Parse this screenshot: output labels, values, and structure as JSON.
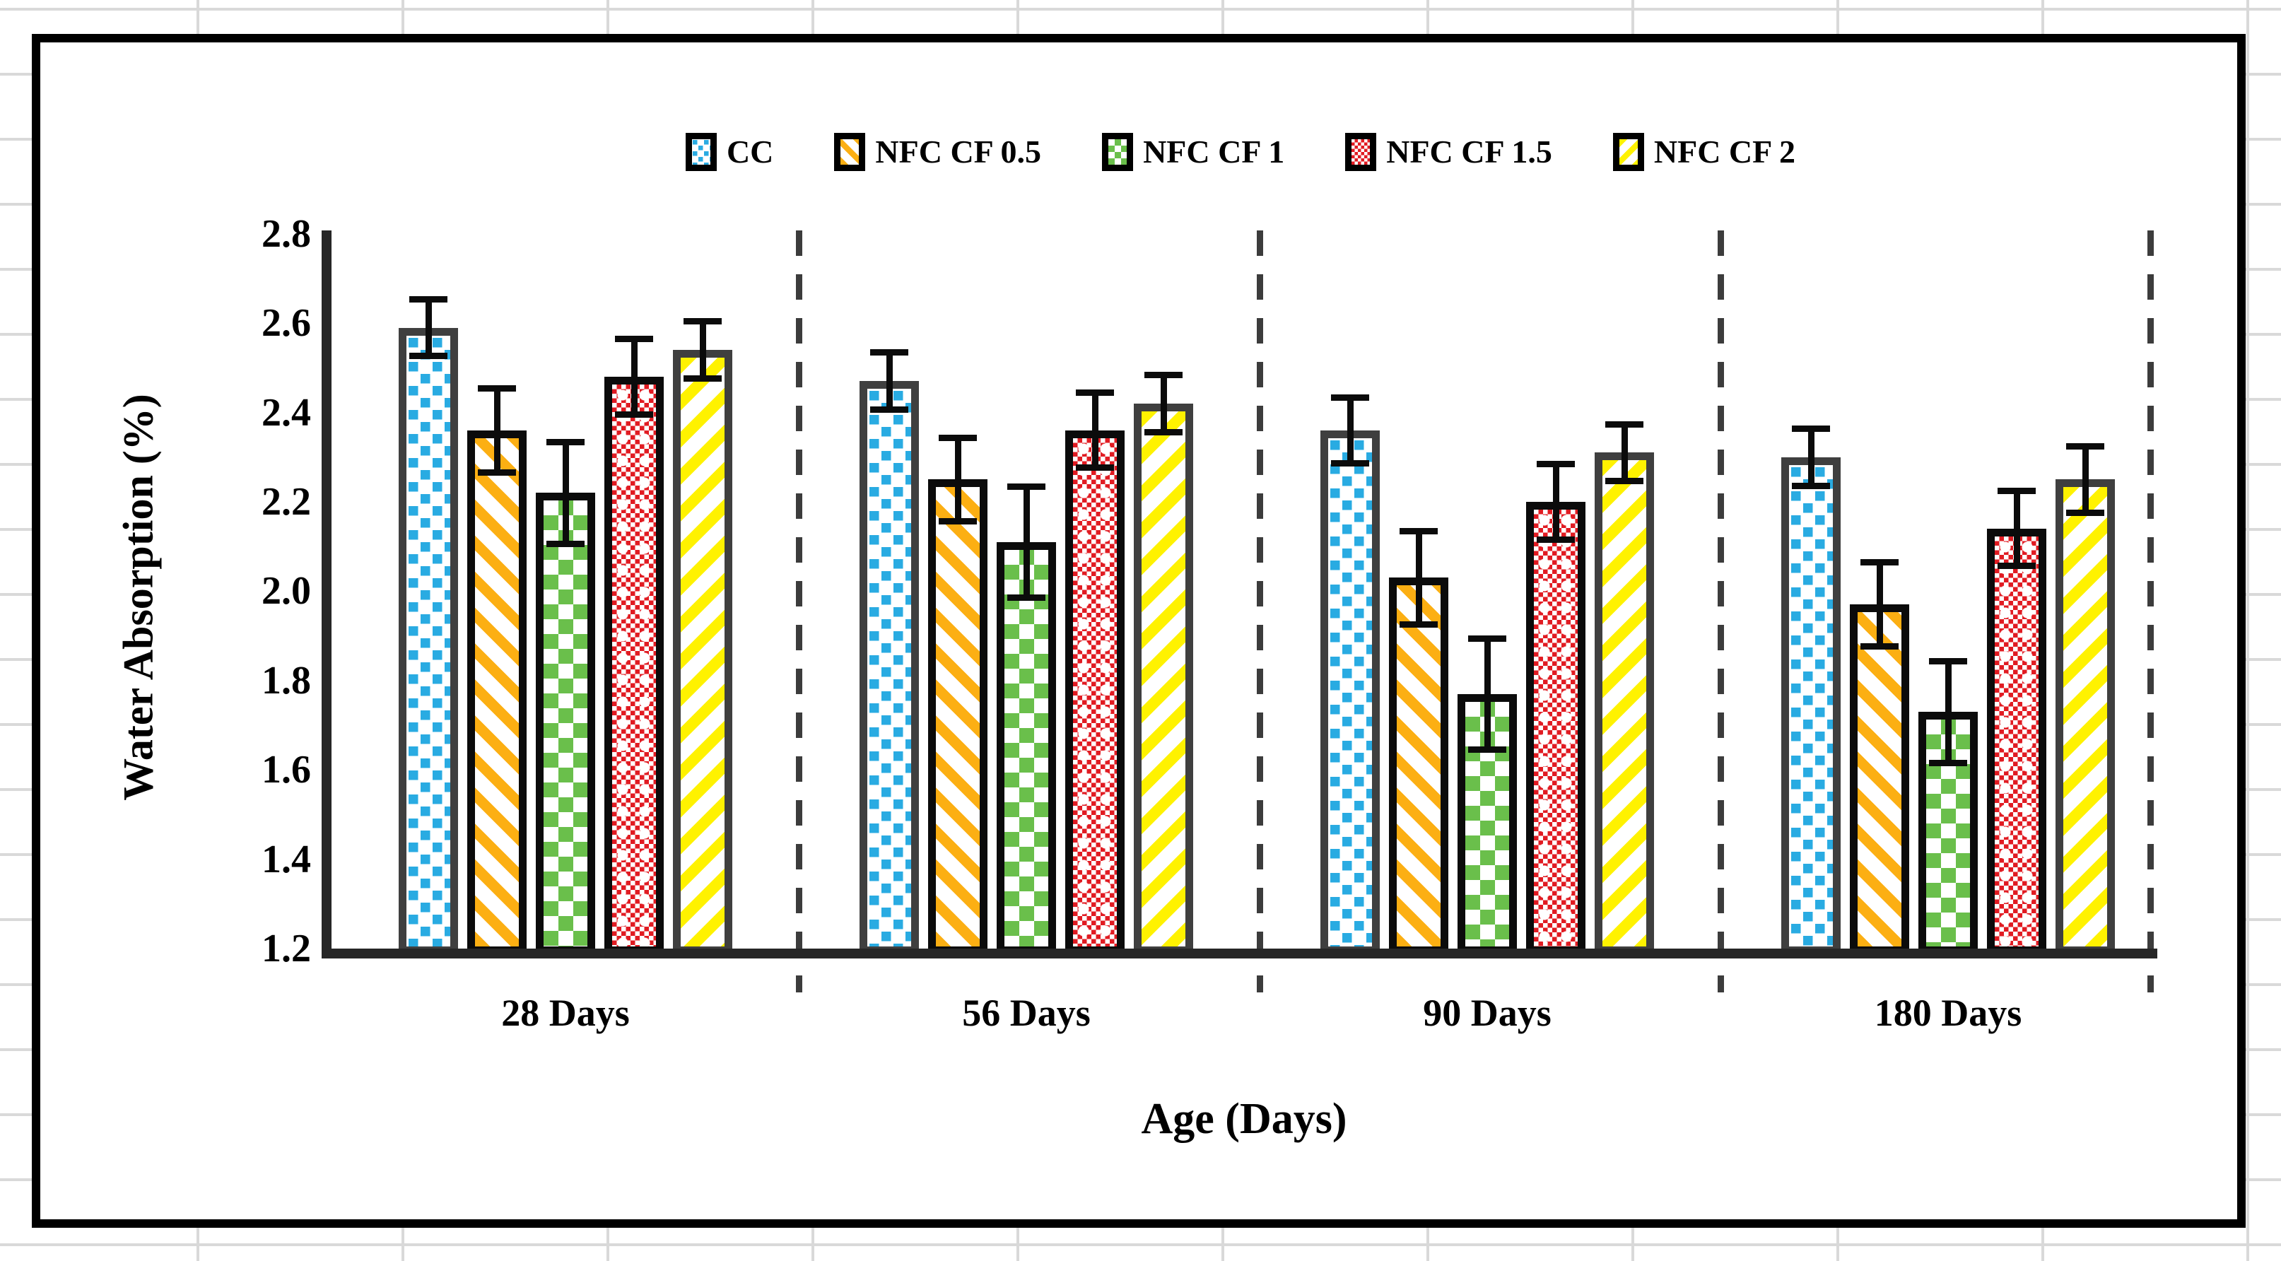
{
  "chart_data": {
    "type": "bar",
    "title": "",
    "xlabel": "Age (Days)",
    "ylabel": "Water Absorption (%)",
    "ylim": [
      1.2,
      2.8
    ],
    "ytick_step": 0.2,
    "yticks": [
      {
        "label": "2.8",
        "value": 2.8
      },
      {
        "label": "2.6",
        "value": 2.6
      },
      {
        "label": "2.4",
        "value": 2.4
      },
      {
        "label": "2.2",
        "value": 2.2
      },
      {
        "label": "2.0",
        "value": 2.0
      },
      {
        "label": "1.8",
        "value": 1.8
      },
      {
        "label": "1.6",
        "value": 1.6
      },
      {
        "label": "1.4",
        "value": 1.4
      },
      {
        "label": "1.2",
        "value": 1.2
      }
    ],
    "categories": [
      "28 Days",
      "56 Days",
      "90 Days",
      "180 Days"
    ],
    "series": [
      {
        "name": "CC",
        "color": "#29abe2",
        "border_color": "#3f3f3f",
        "pattern": "dots-blue",
        "values": [
          2.59,
          2.47,
          2.36,
          2.3
        ],
        "errors": [
          0.06,
          0.06,
          0.07,
          0.06
        ]
      },
      {
        "name": "NFC CF 0.5",
        "color": "#fcaf13",
        "border_color": "#0b0b0b",
        "pattern": "stripe-down",
        "values": [
          2.36,
          2.25,
          2.03,
          1.97
        ],
        "errors": [
          0.09,
          0.09,
          0.1,
          0.09
        ]
      },
      {
        "name": "NFC CF 1",
        "color": "#6abf4b",
        "border_color": "#0b0b0b",
        "pattern": "checker",
        "values": [
          2.22,
          2.11,
          1.77,
          1.73
        ],
        "errors": [
          0.11,
          0.12,
          0.12,
          0.11
        ]
      },
      {
        "name": "NFC CF 1.5",
        "color": "#e11b22",
        "border_color": "#0b0b0b",
        "pattern": "fine-checker",
        "values": [
          2.48,
          2.36,
          2.2,
          2.14
        ],
        "errors": [
          0.08,
          0.08,
          0.08,
          0.08
        ]
      },
      {
        "name": "NFC CF 2",
        "color": "#fff200",
        "border_color": "#3f3f3f",
        "pattern": "stripe-up",
        "values": [
          2.54,
          2.42,
          2.31,
          2.25
        ],
        "errors": [
          0.06,
          0.06,
          0.06,
          0.07
        ]
      }
    ],
    "legend_position": "top",
    "grid": false,
    "group_separators": true,
    "error_bars": true
  }
}
